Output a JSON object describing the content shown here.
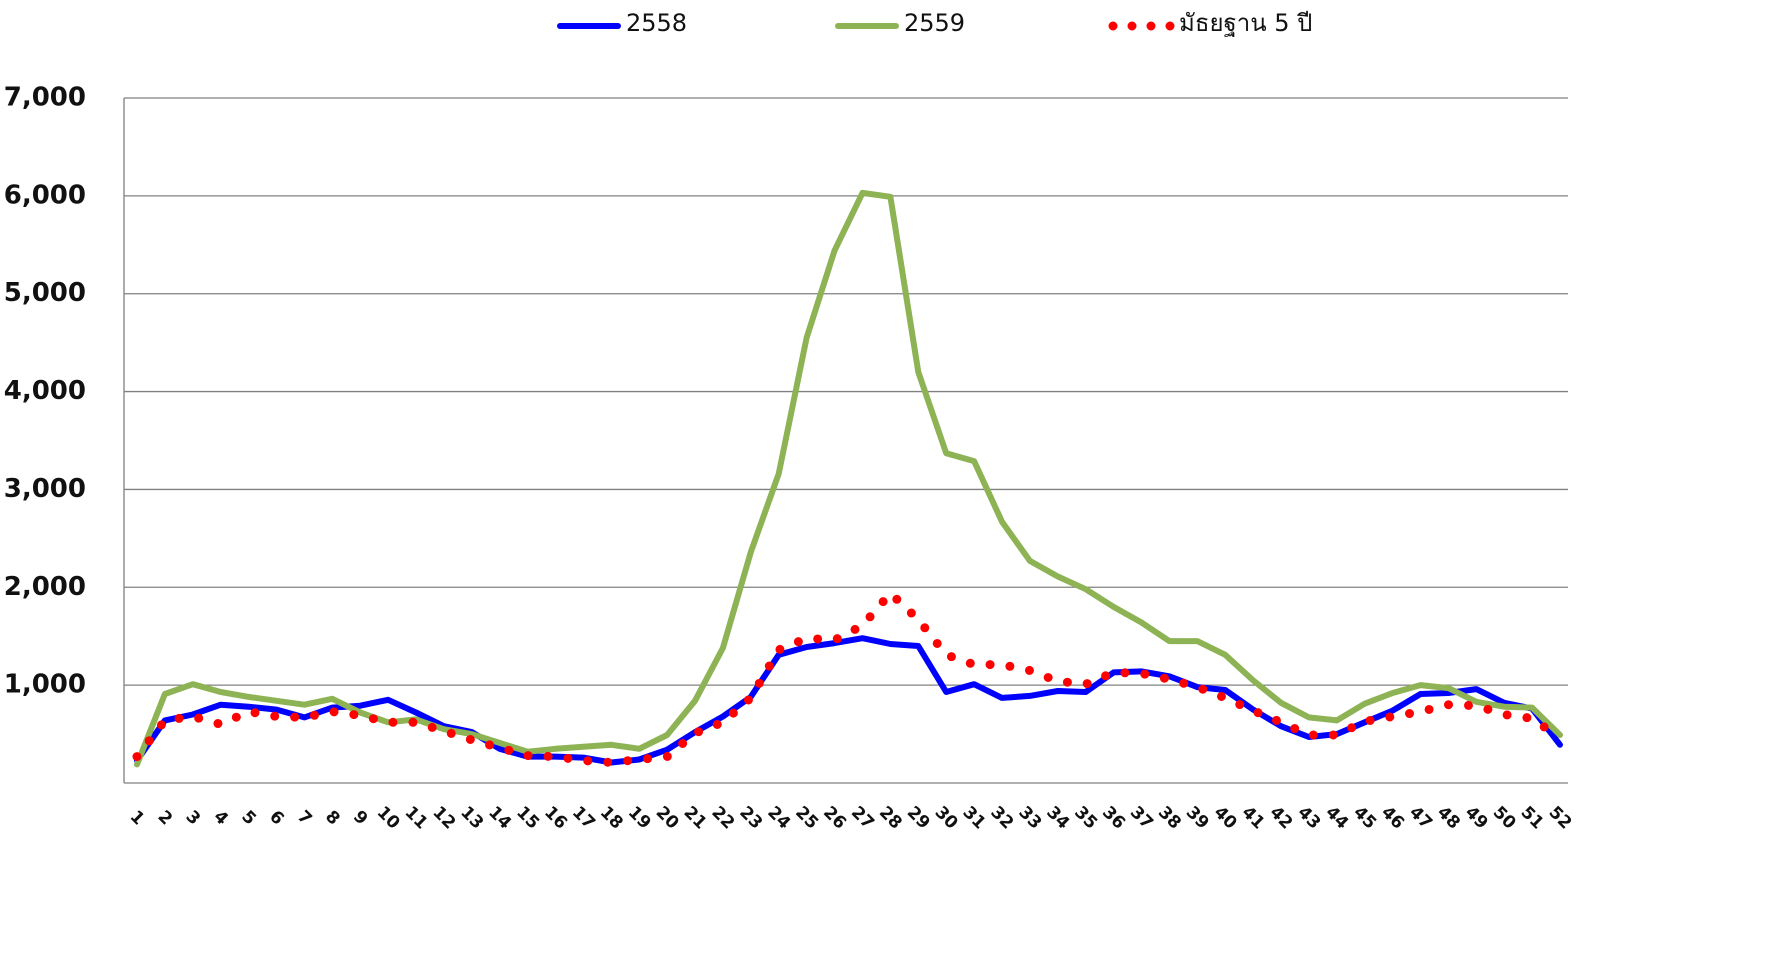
{
  "chart_data": {
    "type": "line",
    "categories": [
      "1",
      "2",
      "3",
      "4",
      "5",
      "6",
      "7",
      "8",
      "9",
      "10",
      "11",
      "12",
      "13",
      "14",
      "15",
      "16",
      "17",
      "18",
      "19",
      "20",
      "21",
      "22",
      "23",
      "24",
      "25",
      "26",
      "27",
      "28",
      "29",
      "30",
      "31",
      "32",
      "33",
      "34",
      "35",
      "36",
      "37",
      "38",
      "39",
      "40",
      "41",
      "42",
      "43",
      "44",
      "45",
      "46",
      "47",
      "48",
      "49",
      "50",
      "51",
      "52"
    ],
    "series": [
      {
        "name": "2558",
        "color": "#0000ff",
        "style": "solid",
        "values": [
          230,
          640,
          700,
          800,
          780,
          750,
          670,
          770,
          790,
          850,
          720,
          580,
          520,
          350,
          270,
          270,
          260,
          210,
          240,
          340,
          520,
          680,
          880,
          1310,
          1390,
          1430,
          1480,
          1420,
          1400,
          930,
          1010,
          870,
          890,
          940,
          930,
          1130,
          1140,
          1090,
          980,
          950,
          750,
          580,
          470,
          500,
          620,
          740,
          910,
          920,
          960,
          820,
          760,
          390
        ]
      },
      {
        "name": "2559",
        "color": "#8db354",
        "style": "solid",
        "values": [
          190,
          910,
          1010,
          930,
          880,
          840,
          800,
          860,
          720,
          620,
          650,
          550,
          500,
          410,
          320,
          350,
          370,
          390,
          350,
          490,
          840,
          1380,
          2360,
          3160,
          4550,
          5440,
          6030,
          5990,
          4200,
          3370,
          3290,
          2670,
          2270,
          2110,
          1980,
          1800,
          1640,
          1450,
          1450,
          1310,
          1050,
          820,
          670,
          640,
          810,
          920,
          1000,
          970,
          830,
          780,
          770,
          490
        ]
      },
      {
        "name": "มัธยฐาน 5 ปี",
        "color": "#ff0000",
        "style": "dotted",
        "values": [
          270,
          640,
          680,
          600,
          730,
          680,
          670,
          730,
          690,
          620,
          620,
          530,
          440,
          360,
          280,
          270,
          230,
          210,
          240,
          270,
          510,
          620,
          870,
          1360,
          1480,
          1460,
          1610,
          1940,
          1670,
          1310,
          1210,
          1210,
          1150,
          1040,
          1010,
          1130,
          1120,
          1060,
          980,
          870,
          740,
          620,
          490,
          490,
          630,
          680,
          730,
          800,
          790,
          700,
          660,
          460
        ]
      }
    ],
    "ylim": [
      0,
      7000
    ],
    "yticks": [
      {
        "value": 1000,
        "label": "1,000"
      },
      {
        "value": 2000,
        "label": "2,000"
      },
      {
        "value": 3000,
        "label": "3,000"
      },
      {
        "value": 4000,
        "label": "4,000"
      },
      {
        "value": 5000,
        "label": "5,000"
      },
      {
        "value": 6000,
        "label": "6,000"
      },
      {
        "value": 7000,
        "label": "7,000"
      }
    ],
    "grid": true,
    "legend": "top"
  }
}
